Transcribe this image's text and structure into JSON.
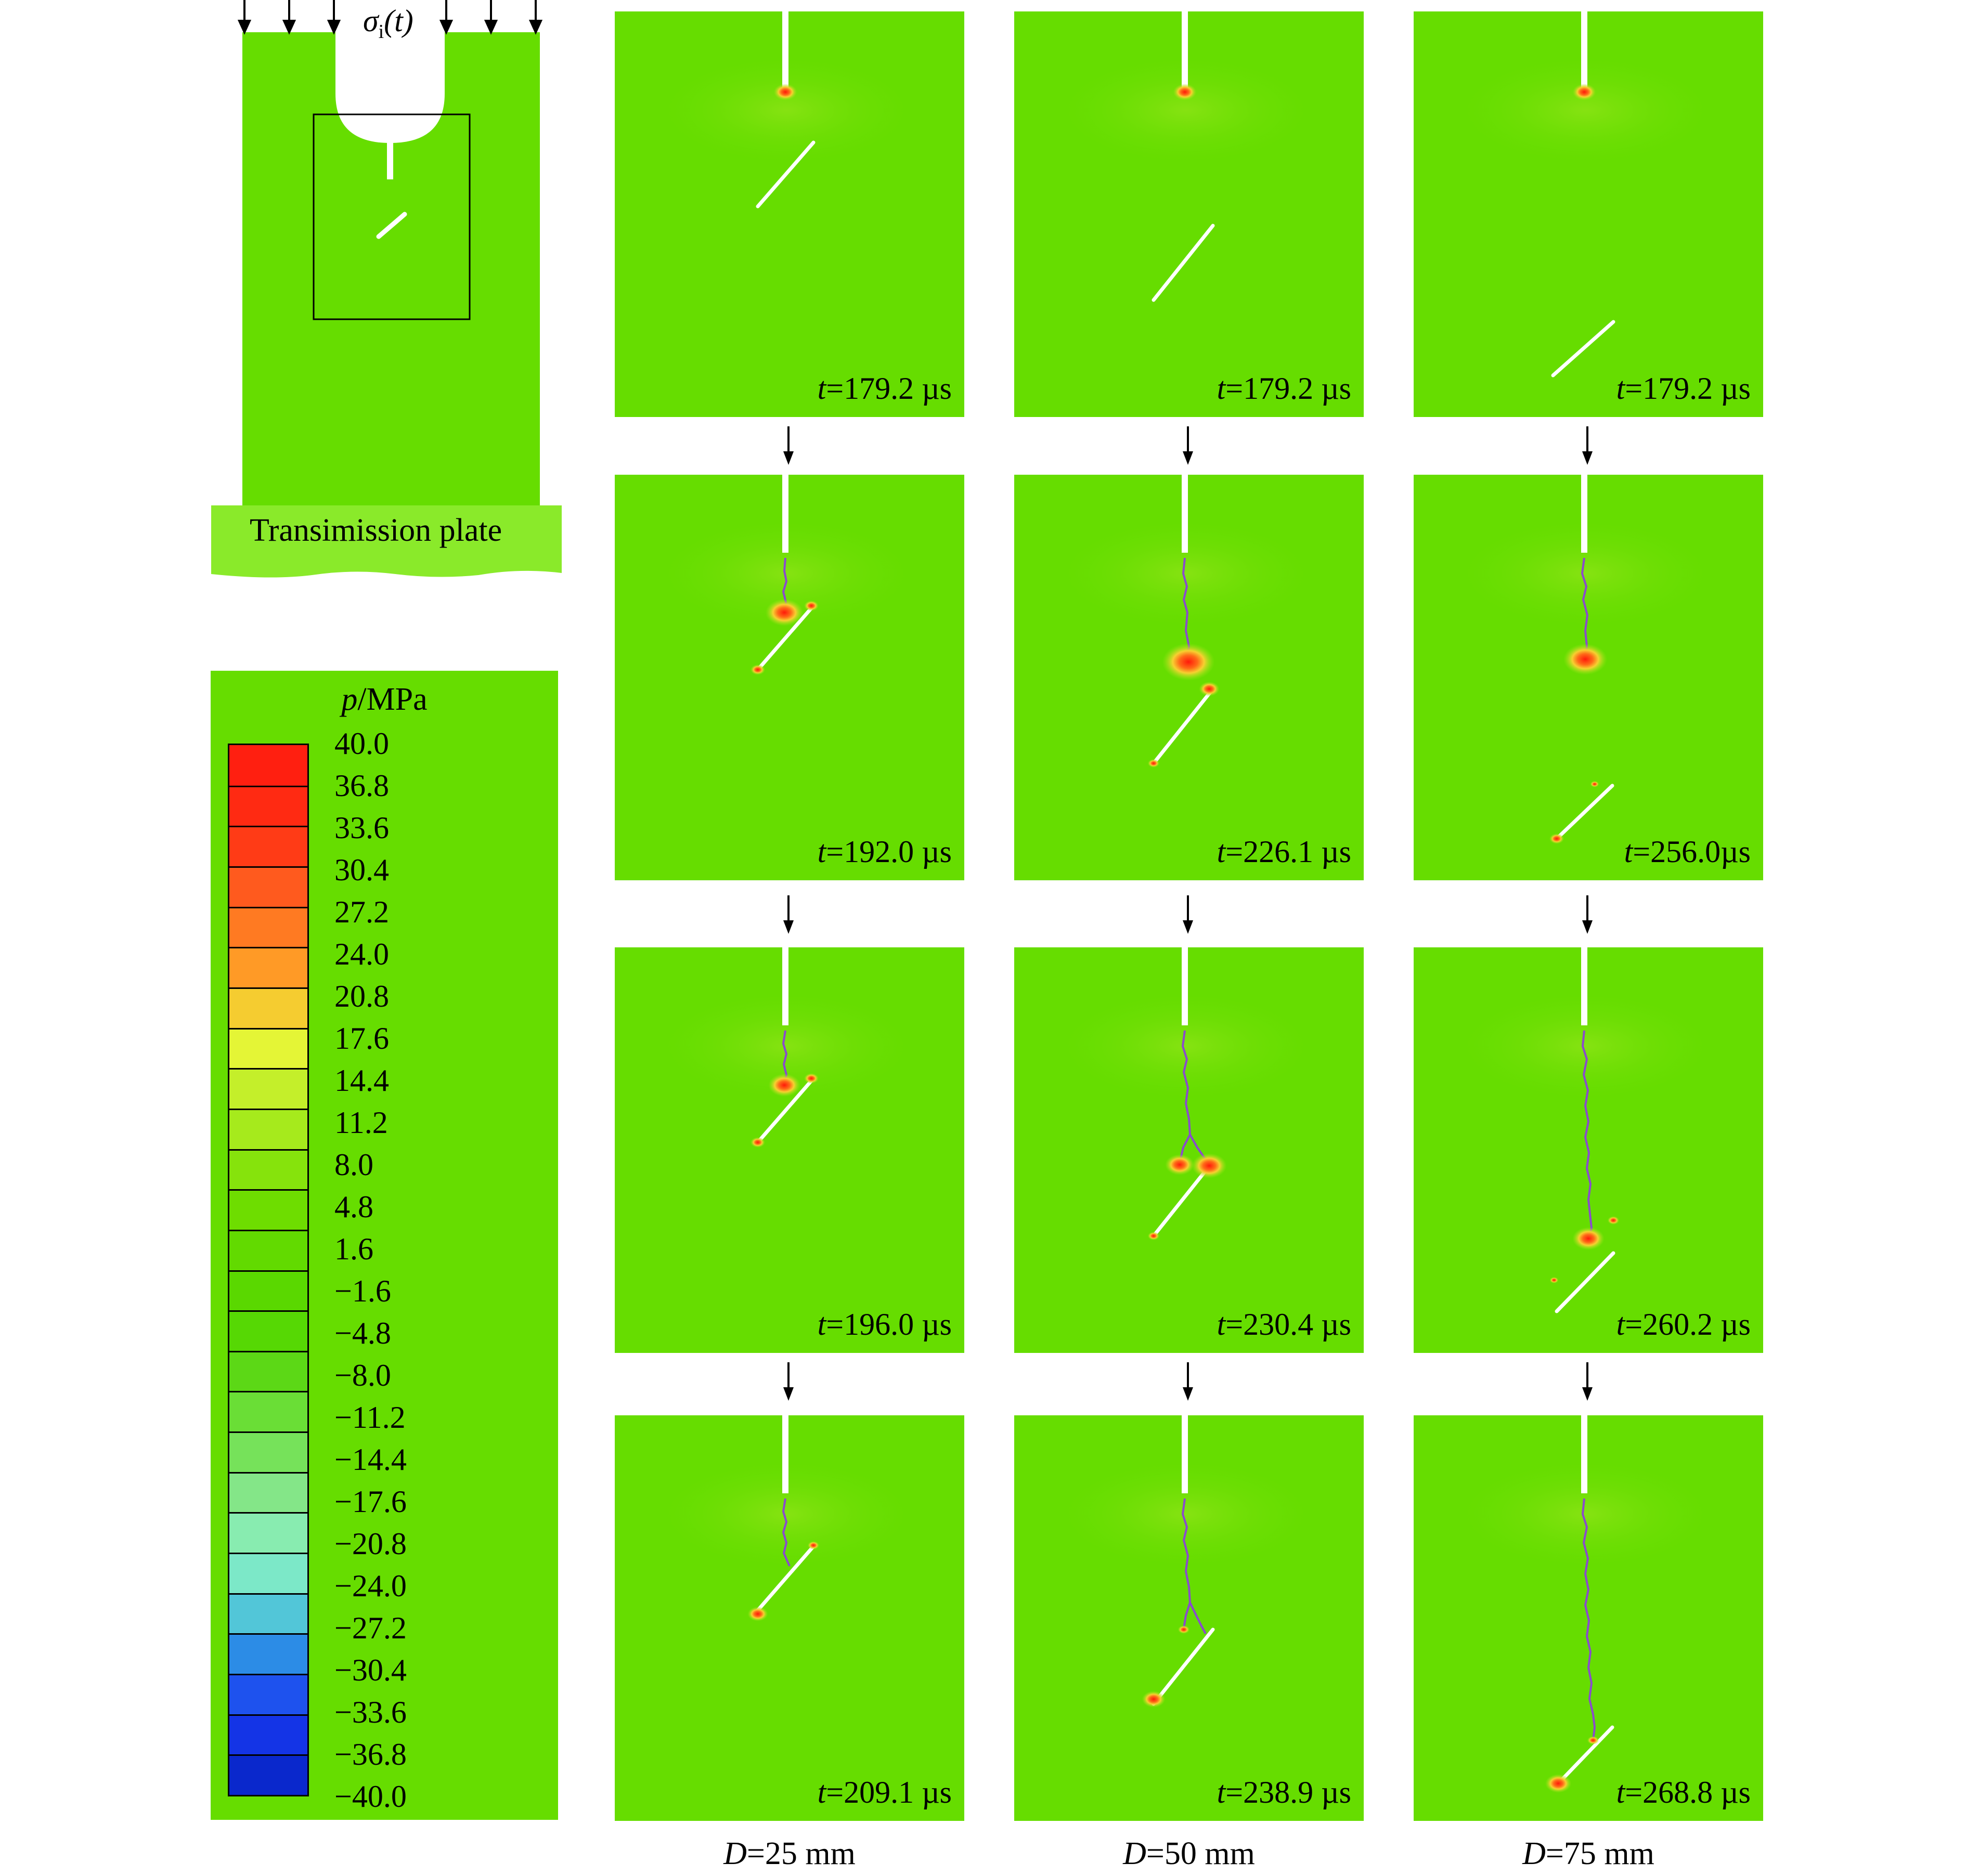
{
  "schematic": {
    "load_label": "σi(t)",
    "load_symbol": "σ",
    "load_subscript": "i",
    "load_arg": "(t)",
    "transmission_plate_label": "Transimission plate"
  },
  "legend": {
    "title_var": "p",
    "title_unit": "/MPa",
    "ticks": [
      "40.0",
      "36.8",
      "33.6",
      "30.4",
      "27.2",
      "24.0",
      "20.8",
      "17.6",
      "14.4",
      "11.2",
      "8.0",
      "4.8",
      "1.6",
      "−1.6",
      "−4.8",
      "−8.0",
      "−11.2",
      "−14.4",
      "−17.6",
      "−20.8",
      "−24.0",
      "−27.2",
      "−30.4",
      "−33.6",
      "−36.8",
      "−40.0"
    ],
    "colors": [
      "#ff1f10",
      "#ff2a12",
      "#ff3b16",
      "#ff5a1e",
      "#ff7a22",
      "#ff9a26",
      "#f5cc30",
      "#e4f536",
      "#c4ef2a",
      "#a6ea1c",
      "#86e30c",
      "#6edd00",
      "#62da00",
      "#5ad800",
      "#56d804",
      "#5cd816",
      "#6ade36",
      "#76e25a",
      "#84e688",
      "#88ecb0",
      "#7ce8c8",
      "#52c6d8",
      "#2c8ce6",
      "#1e52ee",
      "#1434e6",
      "#0a28cc"
    ]
  },
  "columns": [
    {
      "label_var": "D",
      "label_value": "=25 mm",
      "times": [
        "=179.2 µs",
        "=192.0 µs",
        "=196.0 µs",
        "=209.1 µs"
      ]
    },
    {
      "label_var": "D",
      "label_value": "=50 mm",
      "times": [
        "=179.2 µs",
        "=226.1 µs",
        "=230.4 µs",
        "=238.9 µs"
      ]
    },
    {
      "label_var": "D",
      "label_value": "=75 mm",
      "times": [
        "=179.2 µs",
        "=256.0µs",
        "=260.2 µs",
        "=268.8 µs"
      ]
    }
  ],
  "time_symbol": "t",
  "colors": {
    "specimen": "#66dd00",
    "plate": "#8aea2a",
    "crack": "#8a4ccc",
    "hot": "#ff2a10",
    "flaw": "#ffffff"
  }
}
